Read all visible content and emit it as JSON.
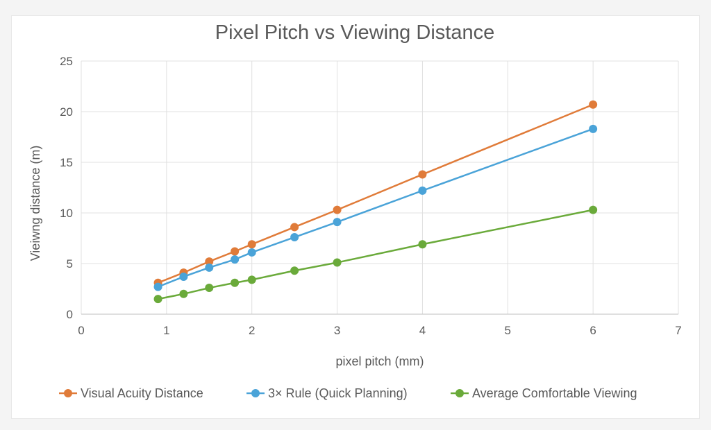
{
  "chart_data": {
    "type": "line",
    "title": "Pixel Pitch vs Viewing Distance",
    "xlabel": "pixel pitch (mm)",
    "ylabel": "Vieiwng distance (m)",
    "xlim": [
      0,
      7
    ],
    "ylim": [
      0,
      25
    ],
    "xticks": [
      0,
      1,
      2,
      3,
      4,
      5,
      6,
      7
    ],
    "yticks": [
      0,
      5,
      10,
      15,
      20,
      25
    ],
    "grid": true,
    "legend_position": "bottom",
    "x": [
      0.9,
      1.2,
      1.5,
      1.8,
      2.0,
      2.5,
      3.0,
      4.0,
      6.0
    ],
    "series": [
      {
        "name": "Visual Acuity Distance",
        "color": "#e07b39",
        "values": [
          3.1,
          4.1,
          5.2,
          6.2,
          6.9,
          8.6,
          10.3,
          13.8,
          20.7
        ]
      },
      {
        "name": "3× Rule (Quick Planning)",
        "color": "#4aa3d8",
        "values": [
          2.7,
          3.7,
          4.6,
          5.4,
          6.1,
          7.6,
          9.1,
          12.2,
          18.3
        ]
      },
      {
        "name": "Average Comfortable Viewing",
        "color": "#6aaa3a",
        "values": [
          1.5,
          2.0,
          2.6,
          3.1,
          3.4,
          4.3,
          5.1,
          6.9,
          10.3
        ]
      }
    ]
  }
}
